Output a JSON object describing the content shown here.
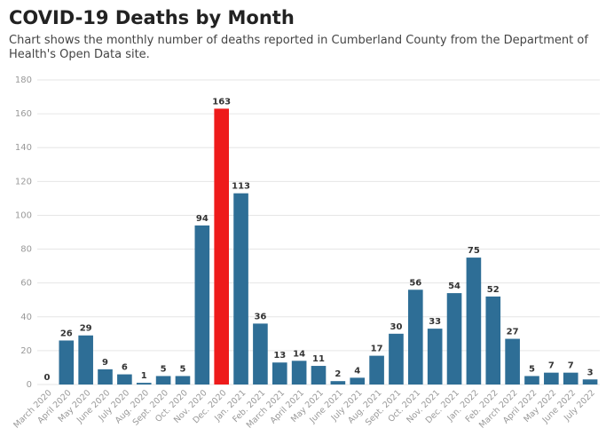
{
  "chart_data": {
    "type": "bar",
    "title": "COVID-19 Deaths by Month",
    "subtitle": "Chart shows the monthly number of deaths reported in Cumberland County from the Department of Health's Open Data site.",
    "categories": [
      "March 2020",
      "April 2020",
      "May 2020",
      "June 2020",
      "July 2020",
      "Aug. 2020",
      "Sept. 2020",
      "Oct. 2020",
      "Nov. 2020",
      "Dec. 2020",
      "Jan. 2021",
      "Feb. 2021",
      "March 2021",
      "April 2021",
      "May 2021",
      "June 2021",
      "July 2021",
      "Aug. 2021",
      "Sept. 2021",
      "Oct. 2021",
      "Nov. 2021",
      "Dec. 2021",
      "Jan. 2022",
      "Feb. 2022",
      "March 2022",
      "April 2022",
      "May 2022",
      "June 2022",
      "July 2022"
    ],
    "values": [
      0,
      26,
      29,
      9,
      6,
      1,
      5,
      5,
      94,
      163,
      113,
      36,
      13,
      14,
      11,
      2,
      4,
      17,
      30,
      56,
      33,
      54,
      75,
      52,
      27,
      5,
      7,
      7,
      3
    ],
    "colors": [
      "#2e6e96",
      "#2e6e96",
      "#2e6e96",
      "#2e6e96",
      "#2e6e96",
      "#2e6e96",
      "#2e6e96",
      "#2e6e96",
      "#2e6e96",
      "#ee1b1b",
      "#2e6e96",
      "#2e6e96",
      "#2e6e96",
      "#2e6e96",
      "#2e6e96",
      "#2e6e96",
      "#2e6e96",
      "#2e6e96",
      "#2e6e96",
      "#2e6e96",
      "#2e6e96",
      "#2e6e96",
      "#2e6e96",
      "#2e6e96",
      "#2e6e96",
      "#2e6e96",
      "#2e6e96",
      "#2e6e96",
      "#2e6e96"
    ],
    "ylim": [
      0,
      180
    ],
    "yticks": [
      0,
      20,
      40,
      60,
      80,
      100,
      120,
      140,
      160,
      180
    ],
    "grid": true
  }
}
